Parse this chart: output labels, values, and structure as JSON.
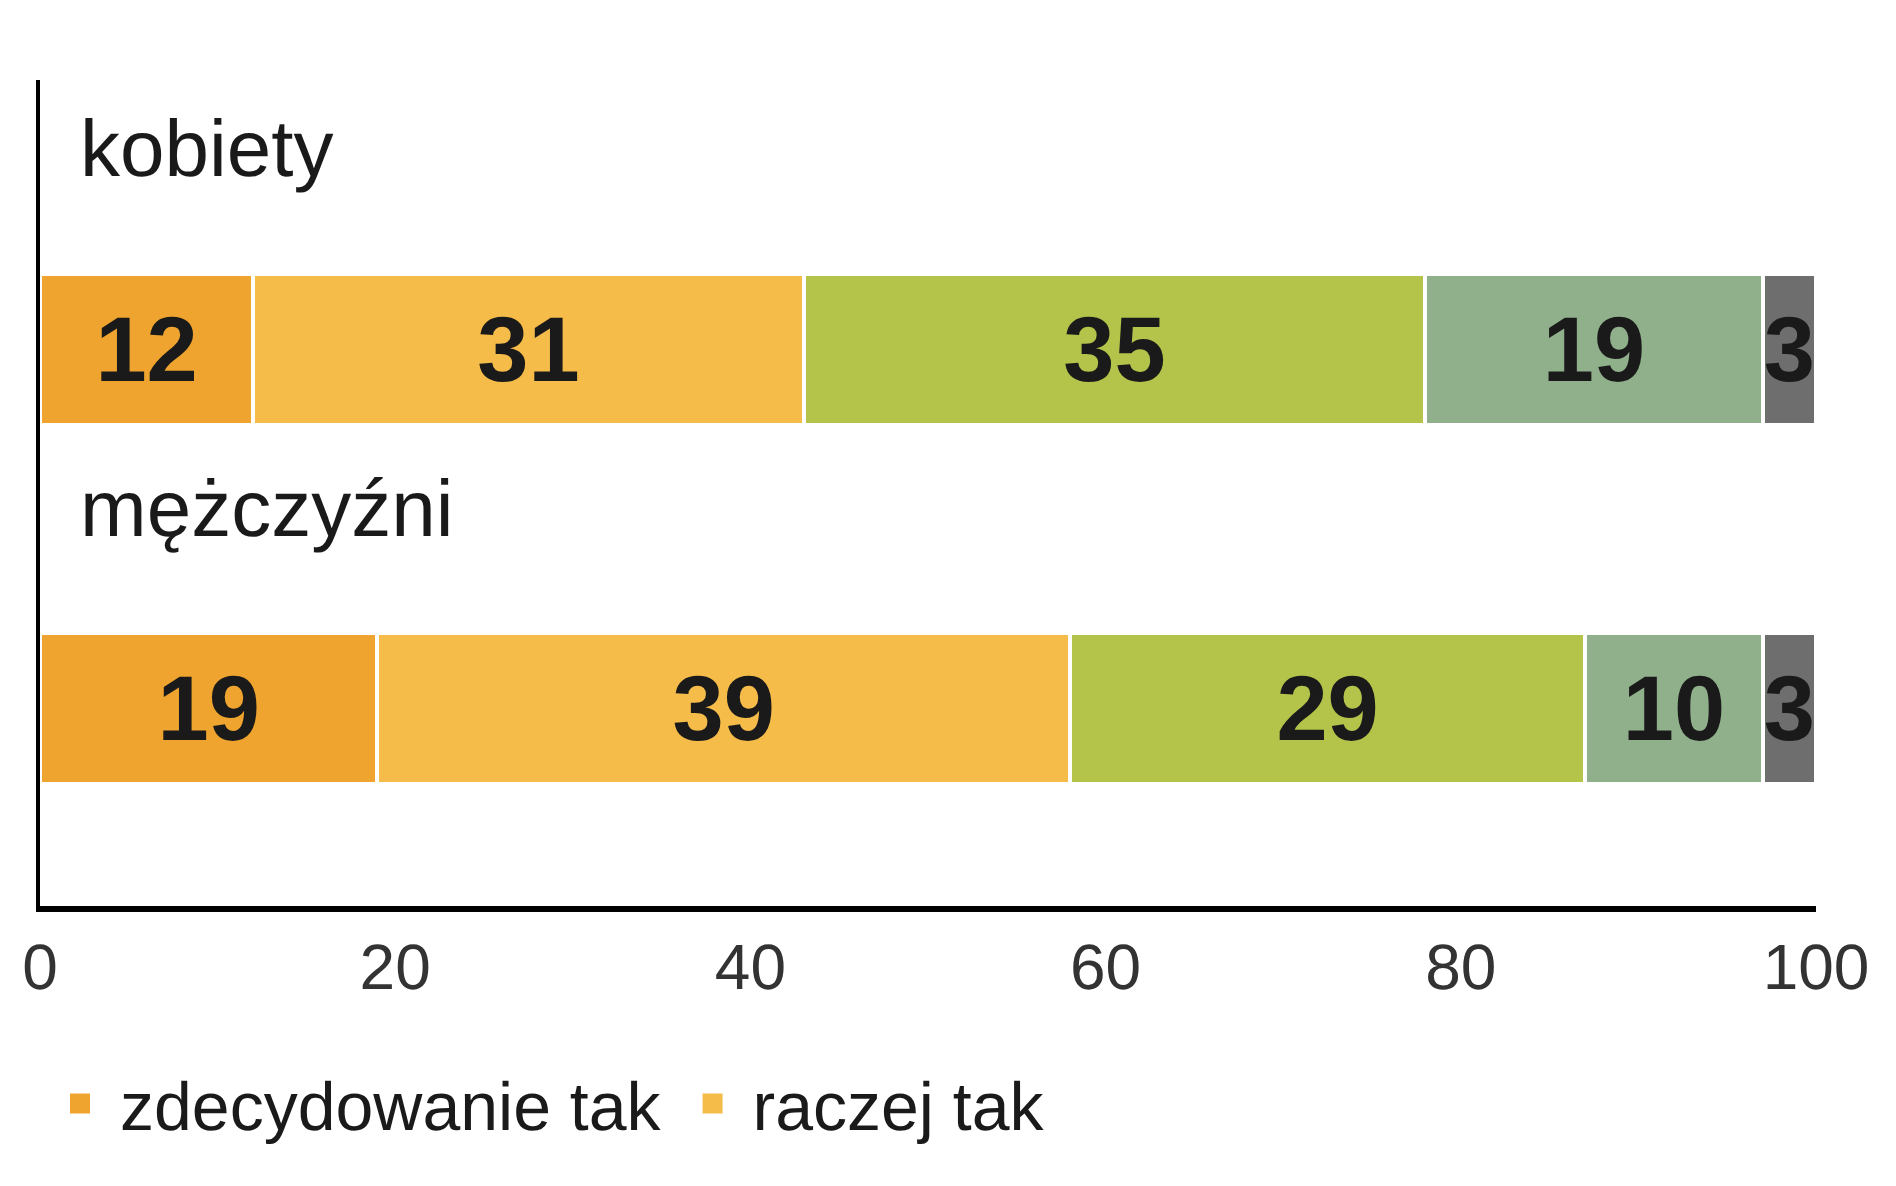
{
  "chart_data": {
    "type": "bar",
    "orientation": "horizontal",
    "stacked": true,
    "categories": [
      "kobiety",
      "mężczyźni"
    ],
    "series": [
      {
        "name": "zdecydowanie tak",
        "color": "#eea42e",
        "values": [
          12,
          19
        ]
      },
      {
        "name": "raczej tak",
        "color": "#f5bc4a",
        "values": [
          31,
          39
        ]
      },
      {
        "color": "#b4c44a",
        "values": [
          35,
          29
        ]
      },
      {
        "color": "#8fb08a",
        "values": [
          19,
          10
        ]
      },
      {
        "color": "#6e6e6e",
        "values": [
          3,
          3
        ]
      }
    ],
    "xlim": [
      0,
      100
    ],
    "xticks": [
      0,
      20,
      40,
      60,
      80,
      100
    ],
    "data_labels": true,
    "tick_labels": "x",
    "legend": "bottom"
  }
}
